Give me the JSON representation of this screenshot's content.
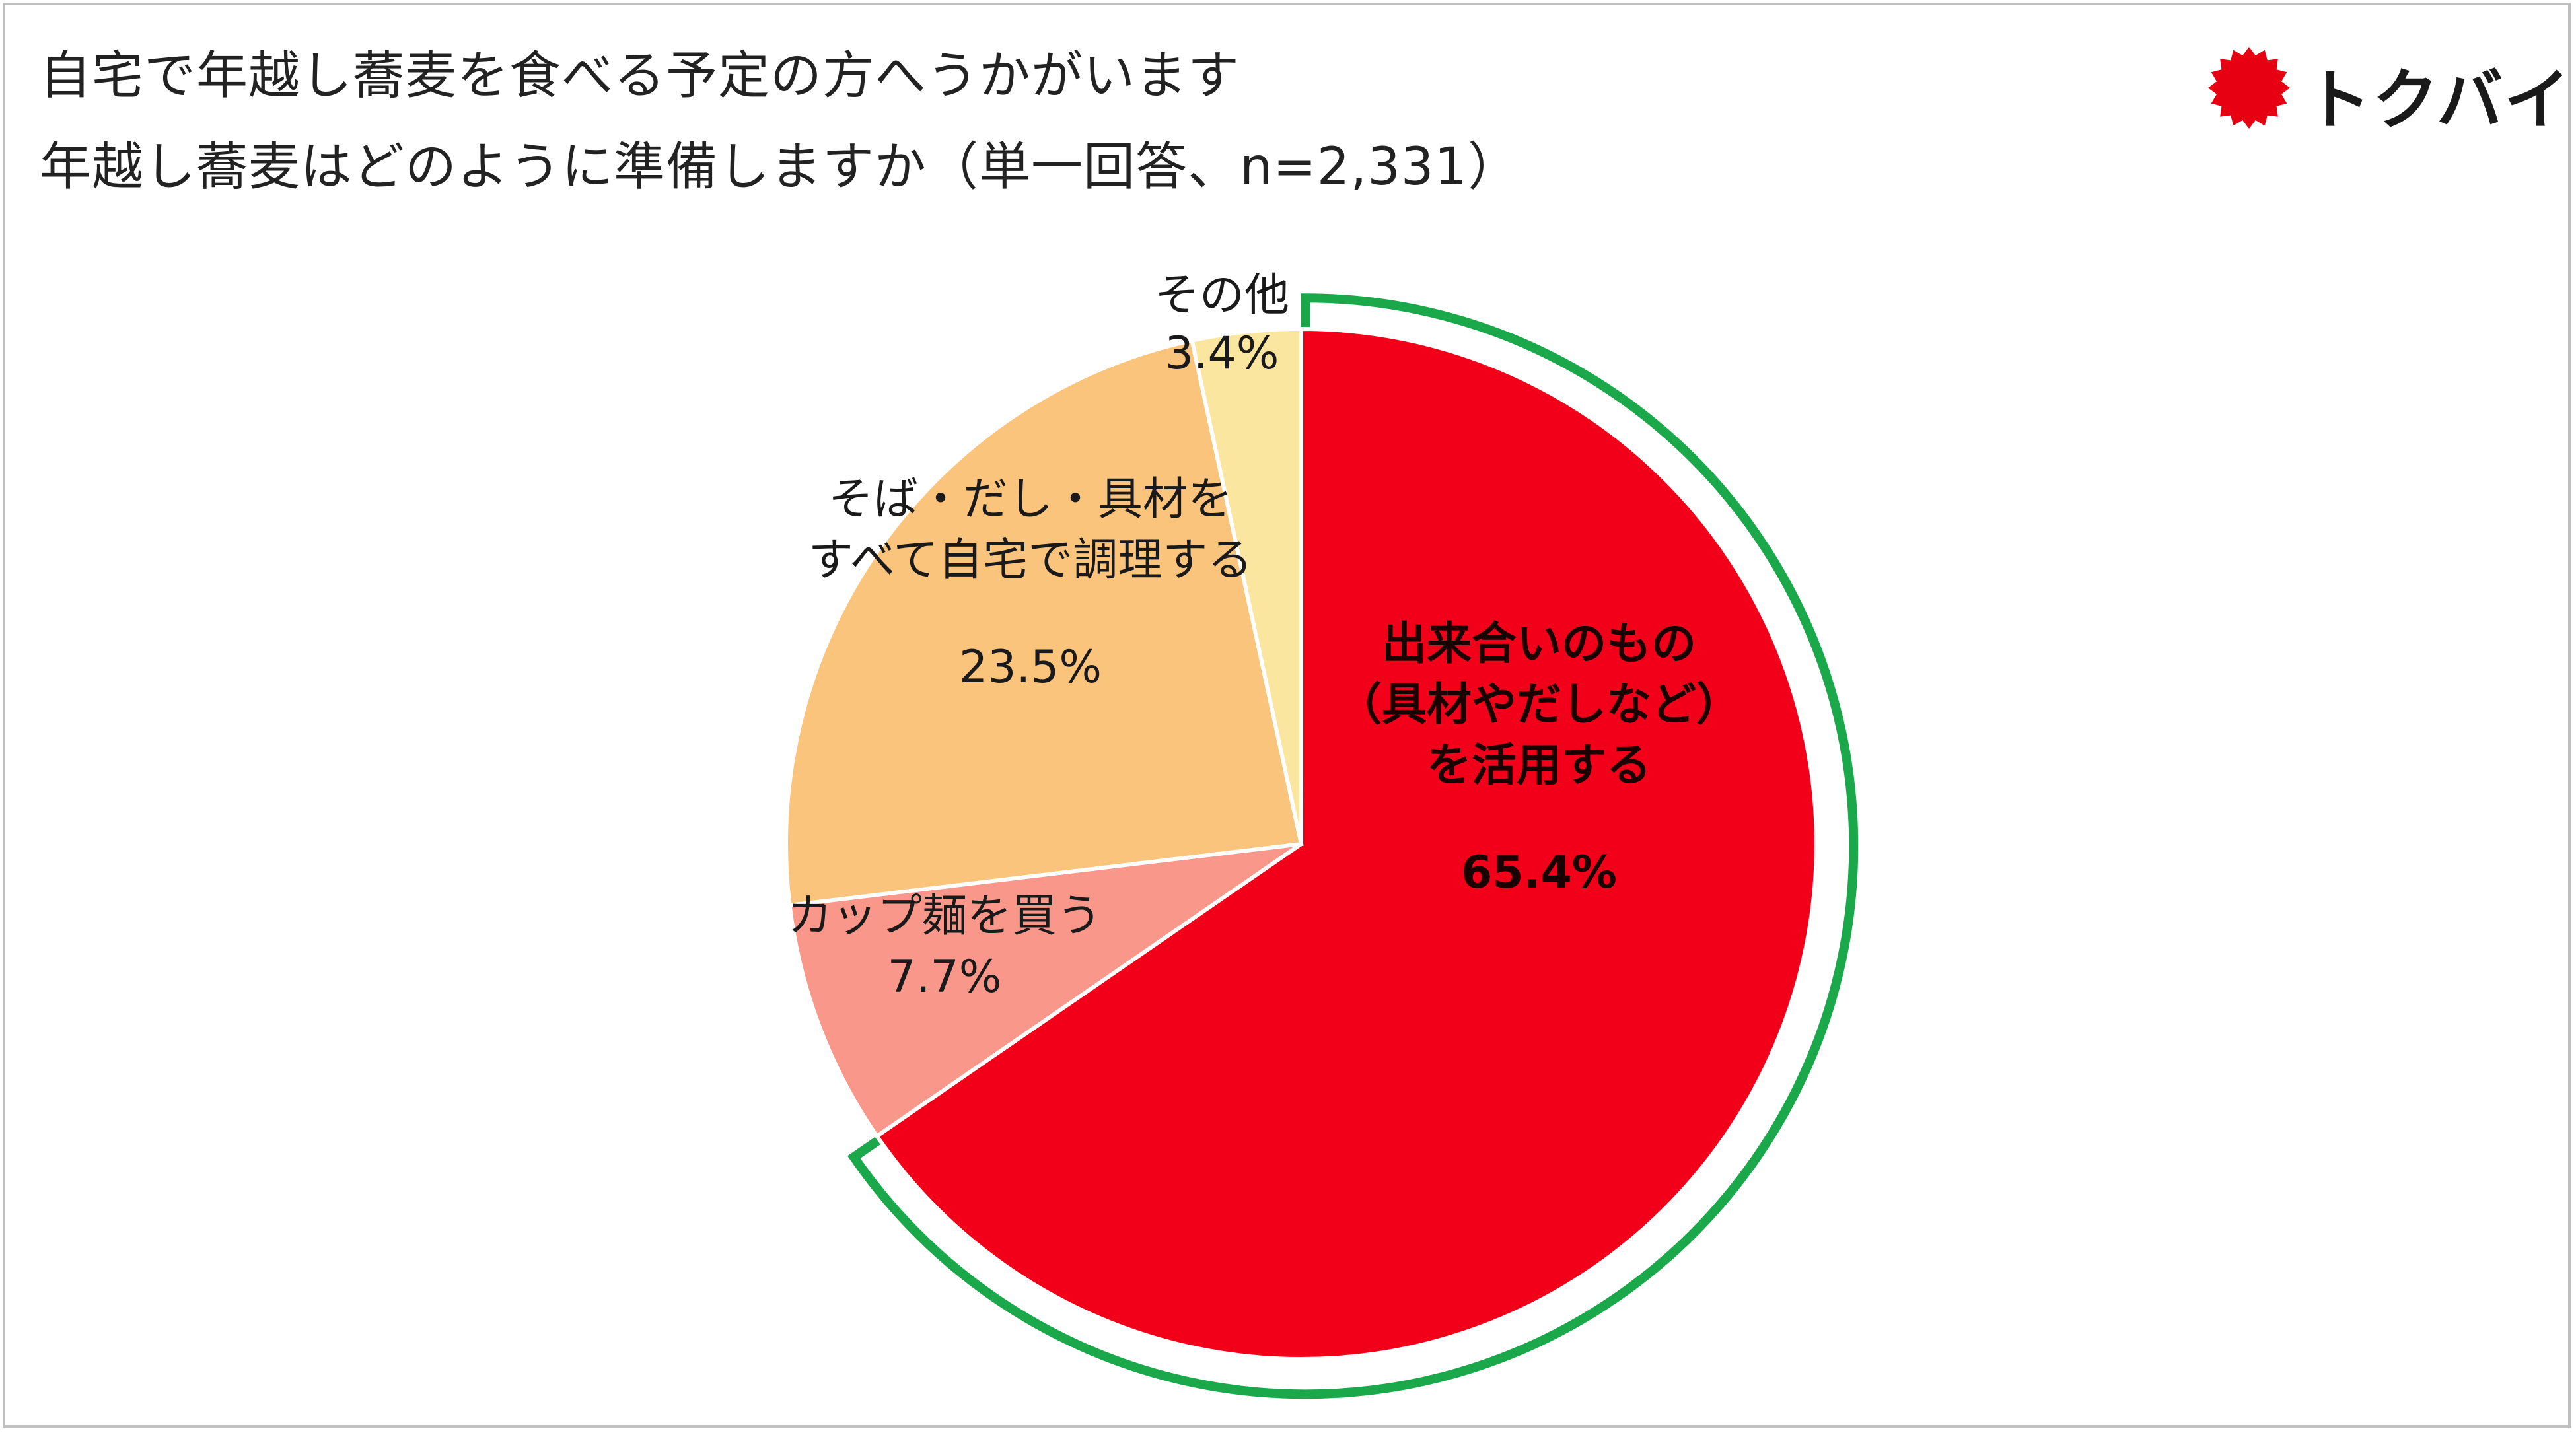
{
  "title": {
    "line1": "自宅で年越し蕎麦を食べる予定の方へうかがいます",
    "line2": "年越し蕎麦はどのように準備しますか（単一回答、n=2,331）"
  },
  "logo": {
    "text": "トクバイ",
    "mark_color": "#e60012",
    "icon": "red-starburst-icon"
  },
  "colors": {
    "highlight_outline": "#1aa84b",
    "slice_border": "#ffffff"
  },
  "chart_data": {
    "type": "pie",
    "start_angle_deg": 0,
    "direction": "clockwise",
    "slices": [
      {
        "label_lines": [
          "出来合いのもの",
          "（具材やだしなど）",
          "を活用する"
        ],
        "value": 65.4,
        "value_label": "65.4%",
        "color": "#f20019",
        "highlight": true,
        "bold": true
      },
      {
        "label_lines": [
          "カップ麺を買う"
        ],
        "value": 7.7,
        "value_label": "7.7%",
        "color": "#f8978a",
        "highlight": false,
        "bold": false
      },
      {
        "label_lines": [
          "そば・だし・具材を",
          "すべて自宅で調理する"
        ],
        "value": 23.5,
        "value_label": "23.5%",
        "color": "#fac47d",
        "highlight": false,
        "bold": false
      },
      {
        "label_lines": [
          "その他"
        ],
        "value": 3.4,
        "value_label": "3.4%",
        "color": "#fbe69f",
        "highlight": false,
        "bold": false
      }
    ]
  }
}
